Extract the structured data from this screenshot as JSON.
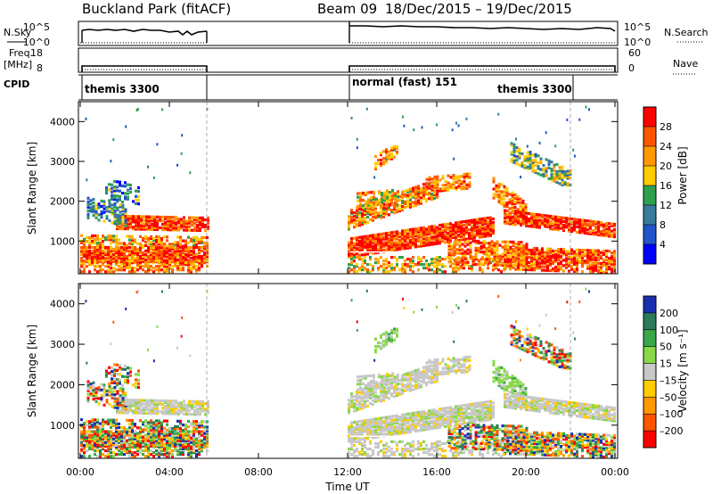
{
  "header": {
    "station": "Buckland Park (fitACF)",
    "beam": "Beam 09",
    "date_range": "18/Dec/2015 – 19/Dec/2015"
  },
  "panels": {
    "nsky_label": "N.Sky",
    "nsky_ticks": [
      "10^5",
      "10^0"
    ],
    "nsearch_label": "N.Search",
    "nsearch_ticks": [
      "10^5",
      "10^0"
    ],
    "freq_label_1": "Freq.",
    "freq_label_2": "[MHz]",
    "freq_ticks": [
      "18",
      "8"
    ],
    "nave_label": "Nave",
    "nave_ticks": [
      "60",
      "0"
    ],
    "cpid_label": "CPID",
    "cpid_entries": [
      "themis 3300",
      "normal (fast) 151",
      "themis 3300"
    ]
  },
  "power_bar": {
    "label": "Power [dB]",
    "ticks": [
      "28",
      "24",
      "20",
      "16",
      "12",
      "8",
      "4"
    ],
    "colors": [
      "#ff0000",
      "#ff5500",
      "#ff9900",
      "#ffcc00",
      "#2f9f4f",
      "#3a7a9a",
      "#2255cc",
      "#0000ff"
    ]
  },
  "velocity_bar": {
    "label": "Velocity [m s⁻¹]",
    "ticks": [
      "200",
      "100",
      "50",
      "15",
      "–15",
      "–50",
      "–100",
      "–200"
    ],
    "colors": [
      "#1a2fb0",
      "#2e7a5a",
      "#3aa84a",
      "#88d84a",
      "#c8c8c8",
      "#ffcc00",
      "#ff9900",
      "#ff5500",
      "#ff0000"
    ]
  },
  "chart_data": {
    "type": "heatmap",
    "xlabel": "Time UT",
    "x_ticks": [
      "00:00",
      "04:00",
      "08:00",
      "12:00",
      "16:00",
      "20:00",
      "00:00"
    ],
    "ylabel": "Slant Range [km]",
    "y_ticks": [
      "1000",
      "2000",
      "3000",
      "4000"
    ],
    "ylim": [
      180,
      4500
    ],
    "data_intervals_hours": [
      [
        0,
        5.75
      ],
      [
        12,
        24
      ]
    ],
    "cpid_intervals": [
      {
        "name": "themis 3300",
        "start": 0,
        "end": 5.75
      },
      {
        "name": "normal (fast) 151",
        "start": 12,
        "end": 18
      },
      {
        "name": "themis 3300",
        "start": 18,
        "end": 22.5
      }
    ]
  }
}
